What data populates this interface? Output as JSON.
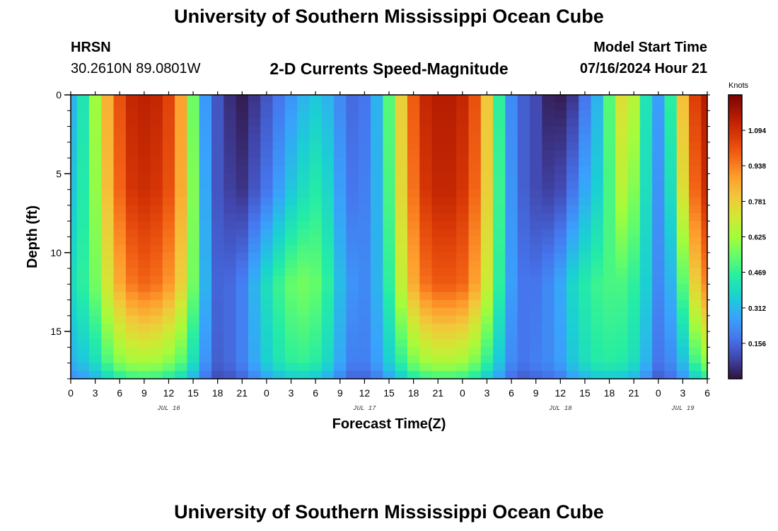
{
  "header": {
    "title": "University of Southern Mississippi Ocean Cube",
    "station": "HRSN",
    "coordinates": "30.2610N  89.0801W",
    "subtitle": "2-D Currents Speed-Magnitude",
    "model_start_label": "Model Start Time",
    "model_start_value": "07/16/2024 Hour 21"
  },
  "footer": {
    "title": "University of Southern Mississippi Ocean Cube"
  },
  "chart_data": {
    "type": "heatmap",
    "title": "2-D Currents Speed-Magnitude",
    "xlabel": "Forecast Time(Z)",
    "ylabel": "Depth (ft)",
    "x_tick_labels": [
      "0",
      "3",
      "6",
      "9",
      "12",
      "15",
      "18",
      "21",
      "0",
      "3",
      "6",
      "9",
      "12",
      "15",
      "18",
      "21",
      "0",
      "3",
      "6",
      "9",
      "12",
      "15",
      "18",
      "21",
      "0",
      "3",
      "6"
    ],
    "x_range_hours": [
      0,
      78
    ],
    "date_labels": [
      {
        "label": "JUL 16",
        "hour": 12
      },
      {
        "label": "JUL 17",
        "hour": 36
      },
      {
        "label": "JUL 18",
        "hour": 60
      },
      {
        "label": "JUL 19",
        "hour": 75
      }
    ],
    "y_tick_labels": [
      "0",
      "5",
      "10",
      "15"
    ],
    "y_ticks": [
      0,
      5,
      10,
      15
    ],
    "y_range_ft": [
      0,
      18
    ],
    "colorbar": {
      "unit": "Knots",
      "range": [
        0,
        1.25
      ],
      "tick_labels": [
        "1.094",
        "0.938",
        "0.781",
        "0.625",
        "0.469",
        "0.312",
        "0.156"
      ],
      "ticks": [
        1.094,
        0.938,
        0.781,
        0.625,
        0.469,
        0.312,
        0.156
      ],
      "colormap": [
        "#30123b",
        "#4145ab",
        "#4675ed",
        "#39a2fc",
        "#1bcfd4",
        "#24eca6",
        "#61fc6c",
        "#a4fc3b",
        "#d1e834",
        "#f3c63a",
        "#fe9b2d",
        "#f36315",
        "#d93806",
        "#b11901",
        "#7a0402"
      ]
    },
    "speed_model": {
      "description": "Current speed (knots) vs forecast hour and depth; rows interpolated between depth profiles",
      "columns": {
        "hours": [
          0,
          1.5,
          3,
          4.5,
          6,
          7.5,
          9,
          10.5,
          12,
          13.5,
          15,
          16.5,
          18,
          19.5,
          21,
          22.5,
          24,
          25.5,
          27,
          28.5,
          30,
          31.5,
          33,
          34.5,
          36,
          37.5,
          39,
          40.5,
          42,
          43.5,
          45,
          46.5,
          48,
          49.5,
          51,
          52.5,
          54,
          55.5,
          57,
          58.5,
          60,
          61.5,
          63,
          64.5,
          66,
          67.5,
          69,
          70.5,
          72,
          73.5,
          75,
          76.5,
          78
        ],
        "depths_ft": [
          0,
          6,
          12,
          17
        ],
        "speed": [
          [
            0.3,
            0.34,
            0.4,
            0.3
          ],
          [
            0.42,
            0.44,
            0.46,
            0.34
          ],
          [
            0.62,
            0.6,
            0.56,
            0.4
          ],
          [
            0.85,
            0.82,
            0.72,
            0.5
          ],
          [
            1.02,
            0.98,
            0.86,
            0.58
          ],
          [
            1.12,
            1.08,
            0.95,
            0.62
          ],
          [
            1.14,
            1.1,
            0.98,
            0.63
          ],
          [
            1.12,
            1.08,
            0.96,
            0.62
          ],
          [
            1.05,
            1.02,
            0.9,
            0.58
          ],
          [
            0.88,
            0.86,
            0.78,
            0.52
          ],
          [
            0.55,
            0.58,
            0.56,
            0.4
          ],
          [
            0.25,
            0.28,
            0.3,
            0.24
          ],
          [
            0.12,
            0.12,
            0.15,
            0.14
          ],
          [
            0.05,
            0.08,
            0.16,
            0.16
          ],
          [
            0.02,
            0.06,
            0.2,
            0.2
          ],
          [
            0.06,
            0.12,
            0.3,
            0.28
          ],
          [
            0.12,
            0.18,
            0.4,
            0.36
          ],
          [
            0.18,
            0.26,
            0.48,
            0.42
          ],
          [
            0.24,
            0.34,
            0.54,
            0.46
          ],
          [
            0.3,
            0.4,
            0.56,
            0.47
          ],
          [
            0.34,
            0.44,
            0.54,
            0.45
          ],
          [
            0.3,
            0.38,
            0.46,
            0.38
          ],
          [
            0.22,
            0.26,
            0.32,
            0.28
          ],
          [
            0.16,
            0.18,
            0.24,
            0.2
          ],
          [
            0.18,
            0.2,
            0.22,
            0.2
          ],
          [
            0.3,
            0.3,
            0.3,
            0.26
          ],
          [
            0.52,
            0.5,
            0.46,
            0.36
          ],
          [
            0.78,
            0.76,
            0.68,
            0.46
          ],
          [
            1.0,
            0.96,
            0.86,
            0.56
          ],
          [
            1.12,
            1.08,
            0.96,
            0.62
          ],
          [
            1.15,
            1.12,
            1.0,
            0.64
          ],
          [
            1.15,
            1.12,
            1.0,
            0.64
          ],
          [
            1.12,
            1.08,
            0.98,
            0.62
          ],
          [
            1.02,
            0.98,
            0.88,
            0.56
          ],
          [
            0.8,
            0.78,
            0.7,
            0.46
          ],
          [
            0.46,
            0.48,
            0.46,
            0.34
          ],
          [
            0.22,
            0.24,
            0.26,
            0.22
          ],
          [
            0.14,
            0.14,
            0.18,
            0.18
          ],
          [
            0.1,
            0.1,
            0.18,
            0.2
          ],
          [
            0.03,
            0.08,
            0.22,
            0.22
          ],
          [
            0.02,
            0.1,
            0.28,
            0.26
          ],
          [
            0.06,
            0.18,
            0.38,
            0.34
          ],
          [
            0.18,
            0.28,
            0.44,
            0.4
          ],
          [
            0.3,
            0.36,
            0.48,
            0.44
          ],
          [
            0.52,
            0.5,
            0.5,
            0.45
          ],
          [
            0.74,
            0.66,
            0.5,
            0.44
          ],
          [
            0.66,
            0.58,
            0.46,
            0.4
          ],
          [
            0.42,
            0.4,
            0.36,
            0.3
          ],
          [
            0.26,
            0.24,
            0.22,
            0.18
          ],
          [
            0.46,
            0.4,
            0.3,
            0.22
          ],
          [
            0.82,
            0.74,
            0.52,
            0.32
          ],
          [
            1.06,
            0.98,
            0.78,
            0.48
          ],
          [
            1.15,
            1.1,
            0.92,
            0.58
          ]
        ]
      }
    }
  }
}
